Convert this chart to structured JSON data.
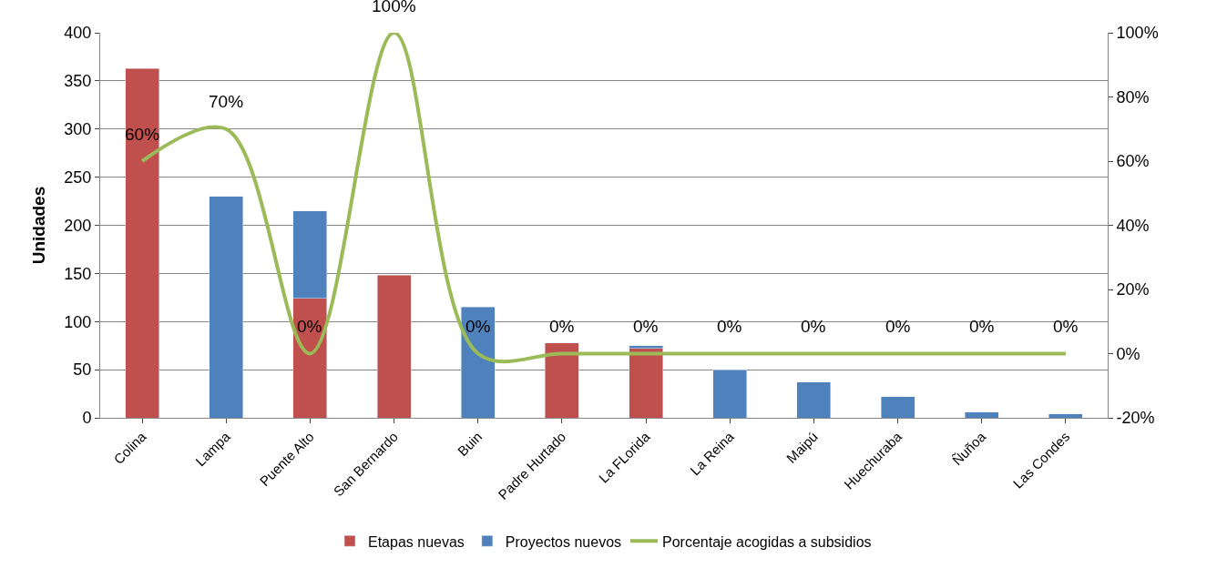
{
  "chart_data": {
    "type": "bar",
    "stacked": true,
    "ylabel": "Unidades",
    "categories": [
      "Colina",
      "Lampa",
      "Puente Alto",
      "San Bernardo",
      "Buin",
      "Padre Hurtado",
      "La FLorida",
      "La Reina",
      "Maipú",
      "Huechuraba",
      "Ñuñoa",
      "Las Condes"
    ],
    "series": [
      {
        "name": "Etapas nuevas",
        "color": "#c0504d",
        "values": [
          363,
          null,
          124,
          148,
          null,
          78,
          72,
          null,
          null,
          null,
          null,
          null
        ]
      },
      {
        "name": "Proyectos nuevos",
        "color": "#4f81bd",
        "values": [
          null,
          230,
          91,
          null,
          115,
          null,
          3,
          50,
          37,
          22,
          6,
          4
        ]
      },
      {
        "name": "Porcentaje acogidas a subsidios",
        "type": "line",
        "axis": "y2",
        "color": "#9bbb59",
        "line_style": "solid",
        "values": [
          60,
          70,
          0,
          100,
          0,
          0,
          0,
          0,
          0,
          0,
          0,
          0
        ],
        "value_labels": [
          "60%",
          "70%",
          "0%",
          "100%",
          "0%",
          "0%",
          "0%",
          "0%",
          "0%",
          "0%",
          "0%",
          "0%"
        ]
      }
    ],
    "ylim": [
      0,
      400
    ],
    "yticks": [
      0,
      50,
      100,
      150,
      200,
      250,
      300,
      350,
      400
    ],
    "y2lim": [
      -20,
      100
    ],
    "y2ticks": [
      {
        "value": -20,
        "label": "-20%"
      },
      {
        "value": 0,
        "label": "0%"
      },
      {
        "value": 20,
        "label": "20%"
      },
      {
        "value": 40,
        "label": "40%"
      },
      {
        "value": 60,
        "label": "60%"
      },
      {
        "value": 80,
        "label": "80%"
      },
      {
        "value": 100,
        "label": "100%"
      }
    ],
    "grid": "y",
    "legend": "bottom"
  }
}
